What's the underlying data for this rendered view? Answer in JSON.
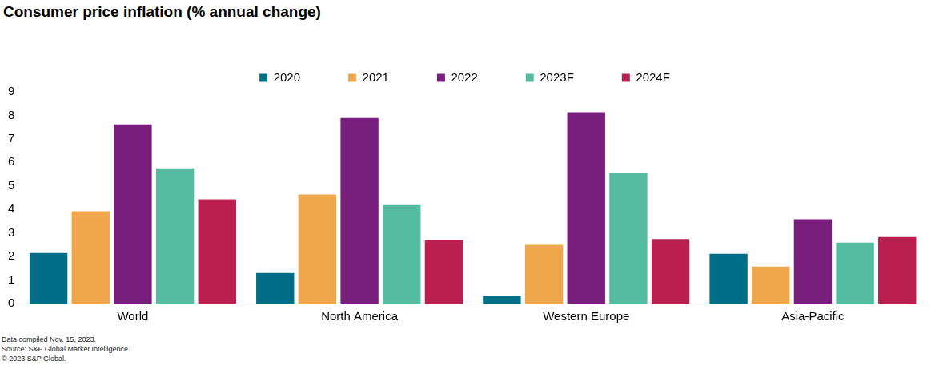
{
  "chart_data": {
    "type": "bar",
    "title": "Consumer price inflation (% annual change)",
    "annotations": [
      "Data compiled Nov. 15, 2023.",
      "Source: S&P Global Market Intelligence.",
      "© 2023 S&P Global."
    ],
    "categories": [
      "World",
      "North America",
      "Western Europe",
      "Asia-Pacific"
    ],
    "series": [
      {
        "name": "2020",
        "color": "#006e87",
        "values": [
          2.15,
          1.3,
          0.33,
          2.11
        ]
      },
      {
        "name": "2021",
        "color": "#f0a64b",
        "values": [
          3.92,
          4.64,
          2.5,
          1.57
        ]
      },
      {
        "name": "2022",
        "color": "#781f7d",
        "values": [
          7.62,
          7.89,
          8.13,
          3.58
        ]
      },
      {
        "name": "2023F",
        "color": "#55bca1",
        "values": [
          5.75,
          4.19,
          5.57,
          2.59
        ]
      },
      {
        "name": "2024F",
        "color": "#b9204f",
        "values": [
          4.43,
          2.68,
          2.74,
          2.83
        ]
      }
    ],
    "ylim": [
      0,
      9
    ],
    "yticks": [
      0,
      1,
      2,
      3,
      4,
      5,
      6,
      7,
      8,
      9
    ],
    "grid": false,
    "legend": "top"
  }
}
